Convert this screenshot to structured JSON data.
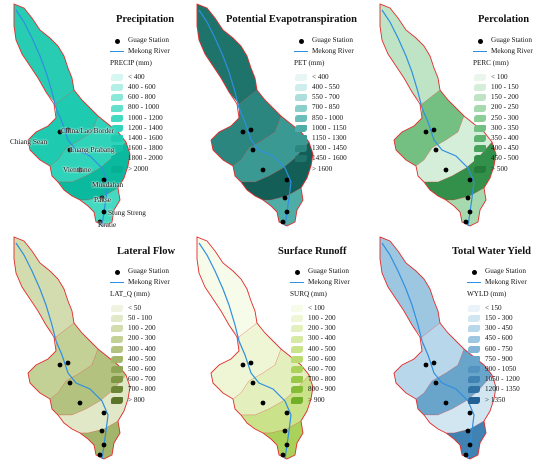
{
  "common": {
    "station_label": "Guage Station",
    "river_label": "Mekong River",
    "river_color": "#2f8fe0",
    "boundary_color": "#e03030",
    "station_color": "#000000"
  },
  "panels": [
    {
      "title": "Precipitation",
      "unit": "PRECIP (mm)",
      "classes": [
        "< 400",
        "400 - 600",
        "600 - 800",
        "800 - 1000",
        "1000 - 1200",
        "1200 - 1400",
        "1400 - 1600",
        "1600 - 1800",
        "1800 - 2000",
        "> 2000"
      ],
      "colors": [
        "#d6f7f1",
        "#b2efe5",
        "#8ae8d8",
        "#63e0cc",
        "#44d9c1",
        "#2fd3b9",
        "#1fcbb0",
        "#12c2a6",
        "#0bba9e",
        "#06b095"
      ],
      "map_colors": [
        "#27ccb2",
        "#1fcbb0",
        "#2fd3b9",
        "#0bba9e",
        "#44d9c1"
      ]
    },
    {
      "title": "Potential Evapotranspiration",
      "unit": "PET (mm)",
      "classes": [
        "< 400",
        "400 - 550",
        "550 - 700",
        "700 - 850",
        "850 - 1000",
        "1000 - 1150",
        "1150 - 1300",
        "1300 - 1450",
        "1450 - 1600",
        "> 1600"
      ],
      "colors": [
        "#e7f6f5",
        "#cdeeec",
        "#acdfdc",
        "#8bcfcb",
        "#6bbeb9",
        "#4fada7",
        "#3a9a93",
        "#2a867f",
        "#1e736b",
        "#135f58"
      ],
      "map_colors": [
        "#1e736b",
        "#2a867f",
        "#3a9a93",
        "#135f58",
        "#4fada7"
      ]
    },
    {
      "title": "Percolation",
      "unit": "PERC (mm)",
      "classes": [
        "< 100",
        "100 - 150",
        "150 - 200",
        "200 - 250",
        "250 - 300",
        "300 - 350",
        "350 - 400",
        "400 - 450",
        "450 - 500",
        "> 500"
      ],
      "colors": [
        "#eaf6ec",
        "#d5eed9",
        "#bfe4c5",
        "#a6d9ae",
        "#8dcd98",
        "#74c083",
        "#5cb26e",
        "#47a35c",
        "#33904a",
        "#237c3a"
      ],
      "map_colors": [
        "#bfe4c5",
        "#74c083",
        "#d5eed9",
        "#33904a",
        "#a6d9ae",
        "#eaf6ec"
      ]
    },
    {
      "title": "Lateral Flow",
      "unit": "LAT_Q (mm)",
      "classes": [
        "< 50",
        "50 - 100",
        "100 - 200",
        "200 - 300",
        "300 - 400",
        "400 - 500",
        "500 - 600",
        "600 - 700",
        "700 - 800",
        "> 800"
      ],
      "colors": [
        "#f0f3e0",
        "#e1e8c7",
        "#d2dcae",
        "#c3d096",
        "#b3c37f",
        "#a2b56a",
        "#90a657",
        "#7e9646",
        "#6c8537",
        "#5a742a"
      ],
      "map_colors": [
        "#d2dcae",
        "#c3d096",
        "#b3c37f",
        "#e1e8c7",
        "#a2b56a"
      ]
    },
    {
      "title": "Surface Runoff",
      "unit": "SURQ (mm)",
      "classes": [
        "< 100",
        "100 - 200",
        "200 - 300",
        "300 - 400",
        "400 - 500",
        "500 - 600",
        "600 - 700",
        "700 - 800",
        "800 - 900",
        "> 900"
      ],
      "colors": [
        "#f7fbea",
        "#eef6d5",
        "#e3f0bd",
        "#d7eaa4",
        "#cae38b",
        "#bbdb72",
        "#aad25b",
        "#98c847",
        "#85bc36",
        "#72af28"
      ],
      "map_colors": [
        "#f7fbea",
        "#eef6d5",
        "#e3f0bd",
        "#cae38b",
        "#aad25b"
      ]
    },
    {
      "title": "Total Water Yield",
      "unit": "WYLD (mm)",
      "classes": [
        "< 150",
        "150 - 300",
        "300 - 450",
        "450 - 600",
        "600 - 750",
        "750 - 900",
        "900 - 1050",
        "1050 - 1200",
        "1200 - 1350",
        "> 1350"
      ],
      "colors": [
        "#e9f3f9",
        "#d2e6f2",
        "#b8d7ea",
        "#9dc6e0",
        "#82b5d6",
        "#69a4cb",
        "#5393bf",
        "#4082b2",
        "#3071a4",
        "#226095"
      ],
      "map_colors": [
        "#9dc6e0",
        "#b8d7ea",
        "#69a4cb",
        "#d2e6f2",
        "#4082b2"
      ]
    }
  ],
  "stations": [
    "Chiang Sean",
    "China/Lao Border",
    "Luang Prabang",
    "Vientiane",
    "Mukdahan",
    "Pakse",
    "Stung Streng",
    "Kratie"
  ]
}
